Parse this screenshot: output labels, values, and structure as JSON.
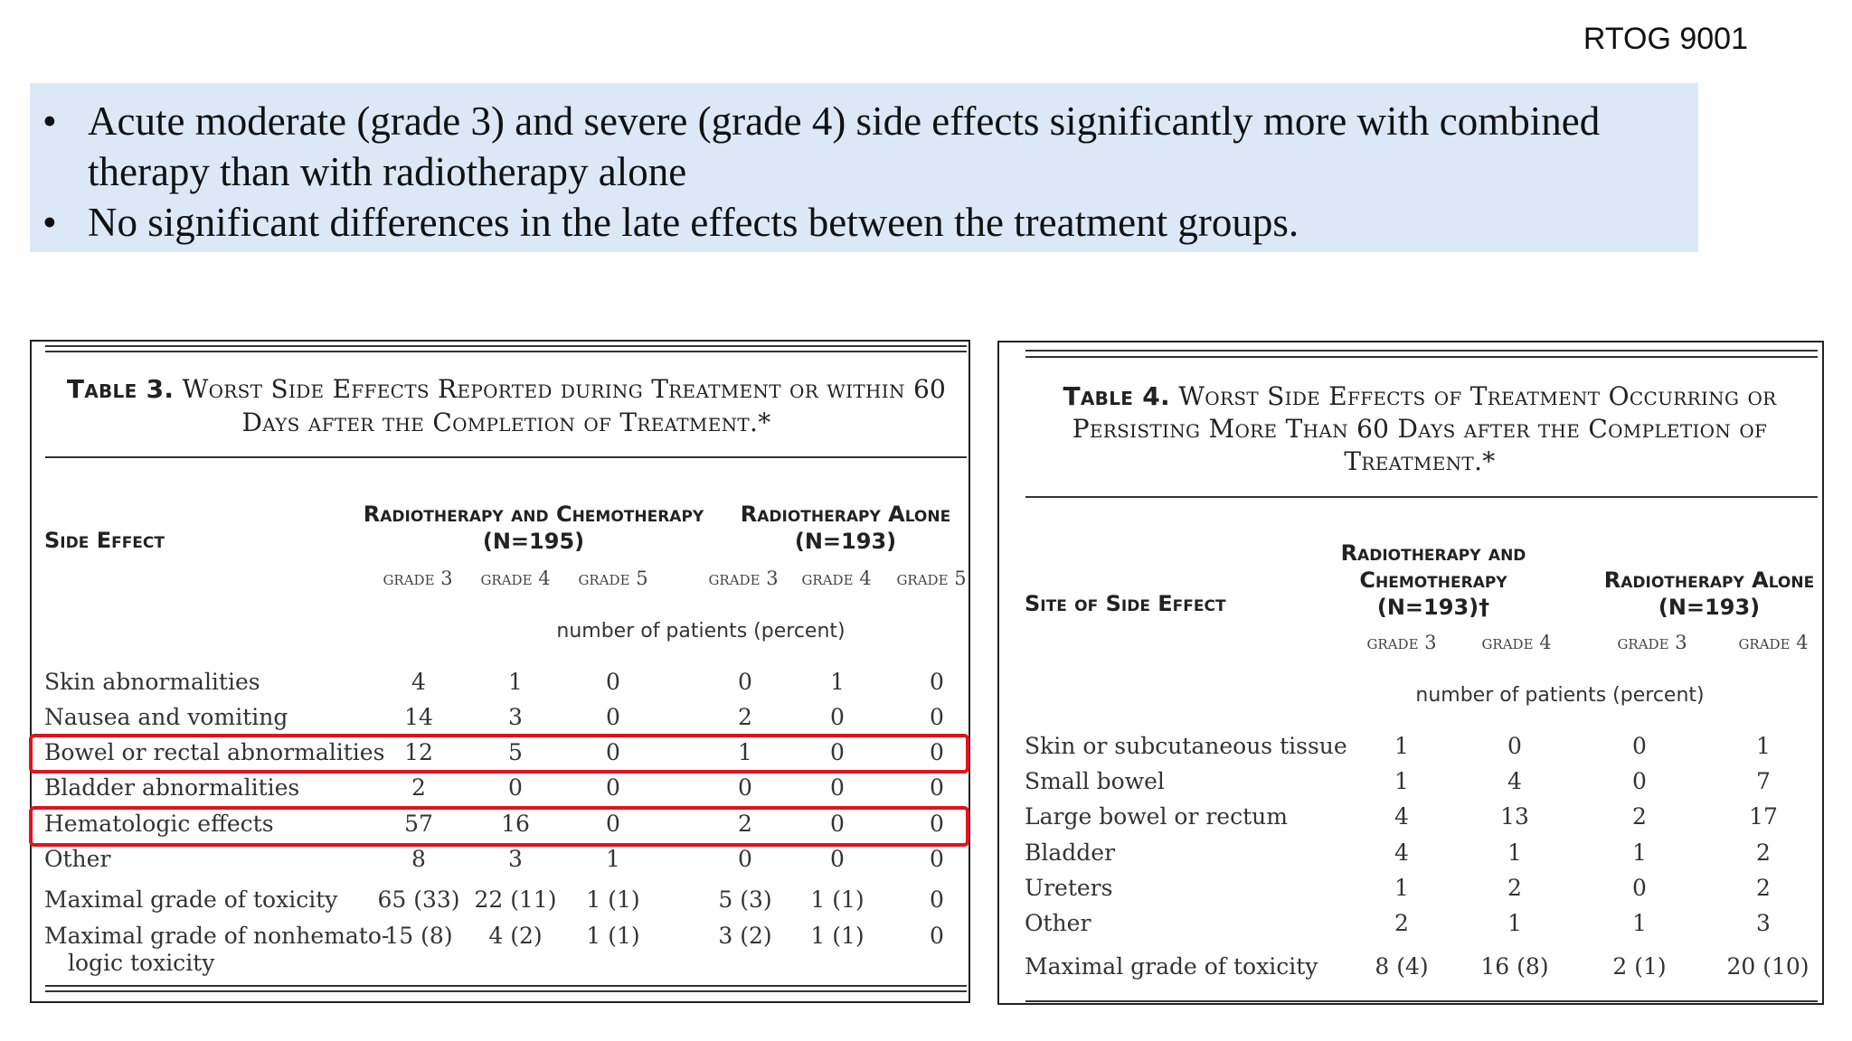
{
  "corner_label": "RTOG 9001",
  "bullets": [
    "Acute moderate (grade 3) and severe (grade 4) side effects significantly more with combined therapy than with radiotherapy alone",
    "No significant differences in the late effects between the treatment groups."
  ],
  "bullet_symbol": "•",
  "table3": {
    "title_num": "Table 3.",
    "title_rest": "Worst Side Effects Reported during Treatment or within 60 Days after the Completion of Treatment.*",
    "col_side_effect": "Side Effect",
    "group1": "Radiotherapy and Chemotherapy",
    "group1_n": "(N=195)",
    "group2": "Radiotherapy Alone",
    "group2_n": "(N=193)",
    "grades": [
      "grade 3",
      "grade 4",
      "grade 5",
      "grade 3",
      "grade 4",
      "grade 5"
    ],
    "units": "number of patients (percent)",
    "rows": [
      {
        "label": "Skin abnormalities",
        "cells": [
          "4",
          "1",
          "0",
          "0",
          "1",
          "0"
        ]
      },
      {
        "label": "Nausea and vomiting",
        "cells": [
          "14",
          "3",
          "0",
          "2",
          "0",
          "0"
        ]
      },
      {
        "label": "Bowel or rectal abnormalities",
        "cells": [
          "12",
          "5",
          "0",
          "1",
          "0",
          "0"
        ]
      },
      {
        "label": "Bladder abnormalities",
        "cells": [
          "2",
          "0",
          "0",
          "0",
          "0",
          "0"
        ]
      },
      {
        "label": "Hematologic effects",
        "cells": [
          "57",
          "16",
          "0",
          "2",
          "0",
          "0"
        ]
      },
      {
        "label": "Other",
        "cells": [
          "8",
          "3",
          "1",
          "0",
          "0",
          "0"
        ]
      },
      {
        "label": "Maximal grade of toxicity",
        "cells": [
          "65 (33)",
          "22 (11)",
          "1 (1)",
          "5 (3)",
          "1 (1)",
          "0"
        ]
      },
      {
        "label": "Maximal grade of nonhemato-",
        "label2": "logic toxicity",
        "cells": [
          "15 (8)",
          "4 (2)",
          "1 (1)",
          "3 (2)",
          "1 (1)",
          "0"
        ]
      }
    ]
  },
  "table4": {
    "title_num": "Table 4.",
    "title_rest": "Worst Side Effects of Treatment Occurring or Persisting More Than 60 Days after the Completion of Treatment.*",
    "col_site": "Site of Side Effect",
    "group1_line1": "Radiotherapy and",
    "group1_line2": "Chemotherapy",
    "group1_n": "(N=193)†",
    "group2": "Radiotherapy Alone",
    "group2_n": "(N=193)",
    "grades": [
      "grade 3",
      "grade 4",
      "grade 3",
      "grade 4"
    ],
    "units": "number of patients (percent)",
    "rows": [
      {
        "label": "Skin or subcutaneous tissue",
        "cells": [
          "1",
          "0",
          "0",
          "1"
        ]
      },
      {
        "label": "Small bowel",
        "cells": [
          "1",
          "4",
          "0",
          "7"
        ]
      },
      {
        "label": "Large bowel or rectum",
        "cells": [
          "4",
          "13",
          "2",
          "17"
        ]
      },
      {
        "label": "Bladder",
        "cells": [
          "4",
          "1",
          "1",
          "2"
        ]
      },
      {
        "label": "Ureters",
        "cells": [
          "1",
          "2",
          "0",
          "2"
        ]
      },
      {
        "label": "Other",
        "cells": [
          "2",
          "1",
          "1",
          "3"
        ]
      },
      {
        "label": "Maximal grade of toxicity",
        "cells": [
          "8 (4)",
          "16 (8)",
          "2 (1)",
          "20 (10)"
        ]
      }
    ]
  },
  "highlight_color": "#e0141e",
  "bullet_box_color": "#dce8f5"
}
